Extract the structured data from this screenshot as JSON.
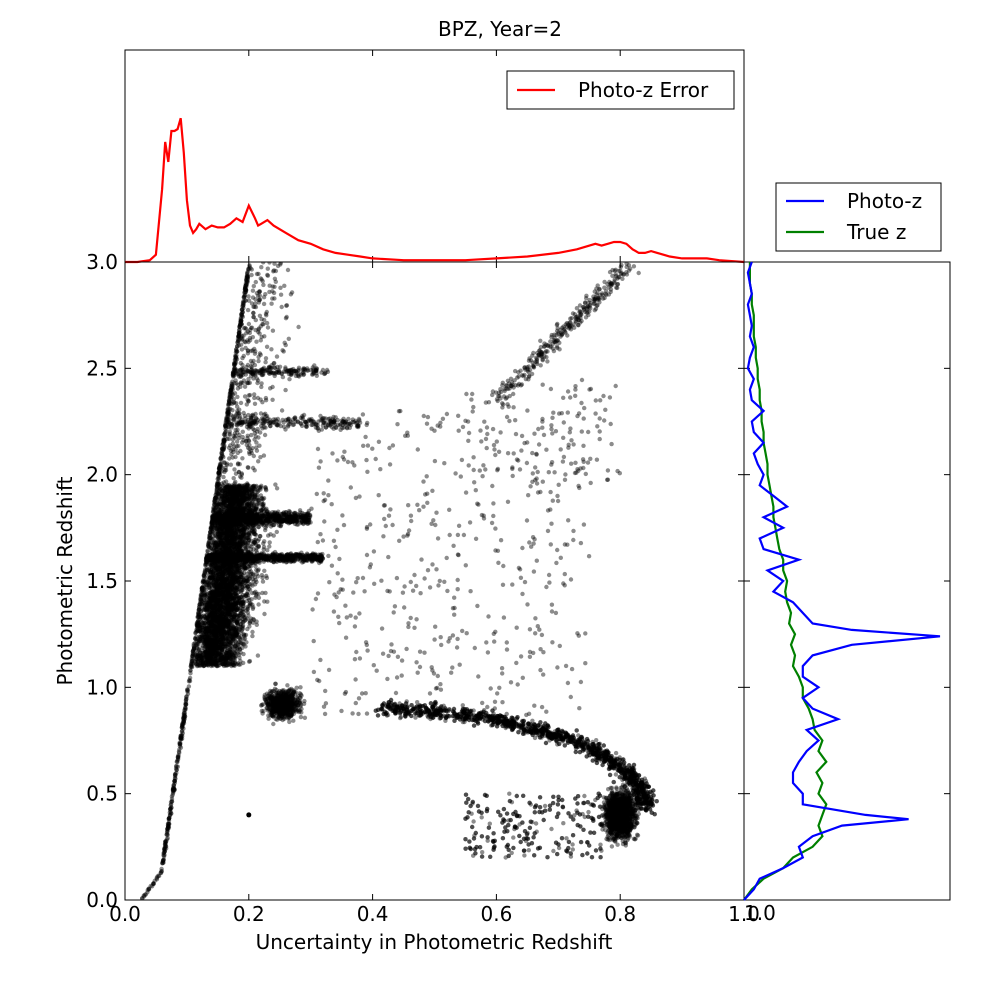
{
  "chart_data": [
    {
      "type": "scatter",
      "title": "BPZ, Year=2",
      "xlabel": "Uncertainty in Photometric Redshift",
      "ylabel": "Photometric Redshift",
      "xlim": [
        0.0,
        1.0
      ],
      "ylim": [
        0.0,
        3.0
      ],
      "xticks": [
        "0.0",
        "0.2",
        "0.4",
        "0.6",
        "0.8",
        "1.0"
      ],
      "yticks": [
        "0.0",
        "0.5",
        "1.0",
        "1.5",
        "2.0",
        "2.5",
        "3.0"
      ],
      "point_color": "#000000",
      "point_alpha": 0.45,
      "clusters": [
        {
          "name": "lower-bound-edge",
          "x_range": [
            0.025,
            0.2
          ],
          "y_range": [
            0.0,
            3.0
          ],
          "count": 700
        },
        {
          "name": "main-body",
          "x_range": [
            0.1,
            0.35
          ],
          "y_range": [
            1.1,
            1.95
          ],
          "count": 4200
        },
        {
          "name": "band-1.6",
          "x_range": [
            0.12,
            0.32
          ],
          "y_range": [
            1.58,
            1.64
          ],
          "count": 700
        },
        {
          "name": "band-1.8",
          "x_range": [
            0.13,
            0.3
          ],
          "y_range": [
            1.75,
            1.84
          ],
          "count": 700
        },
        {
          "name": "band-2.25",
          "x_range": [
            0.15,
            0.38
          ],
          "y_range": [
            2.2,
            2.29
          ],
          "count": 220
        },
        {
          "name": "band-2.5",
          "x_range": [
            0.15,
            0.33
          ],
          "y_range": [
            2.45,
            2.52
          ],
          "count": 150
        },
        {
          "name": "upper-sparse",
          "x_range": [
            0.14,
            0.42
          ],
          "y_range": [
            1.9,
            3.0
          ],
          "count": 450
        },
        {
          "name": "clump-0.9",
          "x_range": [
            0.2,
            0.32
          ],
          "y_range": [
            0.8,
            1.05
          ],
          "count": 650
        },
        {
          "name": "arc-lower",
          "x_range": [
            0.4,
            0.85
          ],
          "y_range": [
            0.15,
            0.9
          ],
          "count": 2200
        },
        {
          "name": "clump-0.4",
          "x_range": [
            0.75,
            0.85
          ],
          "y_range": [
            0.25,
            0.6
          ],
          "count": 1300
        },
        {
          "name": "diagonal-upper",
          "x_range": [
            0.58,
            0.82
          ],
          "y_range": [
            2.3,
            3.0
          ],
          "count": 420
        },
        {
          "name": "scatter-mid",
          "x_range": [
            0.3,
            0.75
          ],
          "y_range": [
            0.85,
            2.3
          ],
          "count": 450
        }
      ],
      "highlight_point": {
        "x": 0.2,
        "y": 0.4
      }
    },
    {
      "type": "line",
      "title": "",
      "xlim": [
        0.0,
        1.0
      ],
      "ylim_label": "3.0",
      "series": [
        {
          "name": "Photo-z Error",
          "color": "#ff0000",
          "x": [
            0.0,
            0.02,
            0.04,
            0.05,
            0.06,
            0.065,
            0.07,
            0.075,
            0.08,
            0.085,
            0.09,
            0.095,
            0.1,
            0.105,
            0.11,
            0.115,
            0.12,
            0.13,
            0.14,
            0.15,
            0.16,
            0.17,
            0.18,
            0.19,
            0.2,
            0.21,
            0.215,
            0.22,
            0.23,
            0.24,
            0.26,
            0.28,
            0.3,
            0.32,
            0.34,
            0.36,
            0.38,
            0.4,
            0.45,
            0.5,
            0.55,
            0.6,
            0.65,
            0.7,
            0.73,
            0.76,
            0.77,
            0.78,
            0.79,
            0.8,
            0.81,
            0.82,
            0.83,
            0.84,
            0.85,
            0.86,
            0.88,
            0.9,
            0.92,
            0.94,
            0.96,
            1.0
          ],
          "y": [
            0.0,
            0.0,
            0.01,
            0.04,
            0.4,
            0.66,
            0.55,
            0.72,
            0.72,
            0.73,
            0.79,
            0.6,
            0.34,
            0.2,
            0.16,
            0.18,
            0.21,
            0.18,
            0.2,
            0.19,
            0.19,
            0.21,
            0.24,
            0.22,
            0.31,
            0.24,
            0.2,
            0.21,
            0.23,
            0.2,
            0.16,
            0.12,
            0.1,
            0.07,
            0.05,
            0.04,
            0.03,
            0.02,
            0.01,
            0.01,
            0.01,
            0.02,
            0.03,
            0.05,
            0.07,
            0.1,
            0.09,
            0.1,
            0.11,
            0.11,
            0.1,
            0.07,
            0.05,
            0.05,
            0.06,
            0.05,
            0.03,
            0.02,
            0.02,
            0.02,
            0.01,
            0.0
          ],
          "ymax": 1.0
        }
      ],
      "legend": "upper right"
    },
    {
      "type": "line",
      "orientation": "horizontal",
      "title": "",
      "ylim": [
        0.0,
        3.0
      ],
      "xtick_label": "1.0",
      "series": [
        {
          "name": "Photo-z",
          "color": "#0000ff",
          "y": [
            0.0,
            0.05,
            0.1,
            0.15,
            0.2,
            0.25,
            0.3,
            0.35,
            0.38,
            0.4,
            0.45,
            0.5,
            0.55,
            0.6,
            0.65,
            0.7,
            0.75,
            0.8,
            0.85,
            0.9,
            0.95,
            1.0,
            1.05,
            1.1,
            1.15,
            1.2,
            1.24,
            1.27,
            1.3,
            1.35,
            1.4,
            1.45,
            1.5,
            1.55,
            1.6,
            1.65,
            1.7,
            1.75,
            1.8,
            1.85,
            1.9,
            1.95,
            2.0,
            2.05,
            2.1,
            2.15,
            2.2,
            2.25,
            2.3,
            2.35,
            2.4,
            2.45,
            2.5,
            2.55,
            2.6,
            2.65,
            2.7,
            2.75,
            2.8,
            2.85,
            2.9,
            2.95,
            3.0
          ],
          "x": [
            0.0,
            0.05,
            0.08,
            0.2,
            0.3,
            0.28,
            0.35,
            0.5,
            0.84,
            0.62,
            0.3,
            0.3,
            0.25,
            0.25,
            0.28,
            0.32,
            0.38,
            0.32,
            0.48,
            0.35,
            0.3,
            0.38,
            0.3,
            0.3,
            0.35,
            0.55,
            1.0,
            0.55,
            0.35,
            0.3,
            0.25,
            0.15,
            0.2,
            0.12,
            0.28,
            0.1,
            0.08,
            0.2,
            0.1,
            0.22,
            0.15,
            0.08,
            0.1,
            0.07,
            0.05,
            0.1,
            0.05,
            0.04,
            0.1,
            0.04,
            0.03,
            0.05,
            0.02,
            0.03,
            0.05,
            0.03,
            0.04,
            0.03,
            0.02,
            0.04,
            0.03,
            0.02,
            0.04
          ],
          "xmax": 1.0
        },
        {
          "name": "True z",
          "color": "#008000",
          "y": [
            0.0,
            0.05,
            0.1,
            0.15,
            0.2,
            0.25,
            0.3,
            0.35,
            0.4,
            0.45,
            0.5,
            0.55,
            0.6,
            0.65,
            0.7,
            0.75,
            0.8,
            0.85,
            0.9,
            0.95,
            1.0,
            1.05,
            1.1,
            1.15,
            1.2,
            1.25,
            1.3,
            1.35,
            1.4,
            1.45,
            1.5,
            1.55,
            1.6,
            1.65,
            1.7,
            1.75,
            1.8,
            1.85,
            1.9,
            1.95,
            2.0,
            2.05,
            2.1,
            2.15,
            2.2,
            2.25,
            2.3,
            2.35,
            2.4,
            2.45,
            2.5,
            2.55,
            2.6,
            2.65,
            2.7,
            2.75,
            2.8,
            2.85,
            2.9,
            2.95,
            3.0
          ],
          "x": [
            0.0,
            0.04,
            0.1,
            0.2,
            0.25,
            0.35,
            0.4,
            0.38,
            0.4,
            0.42,
            0.38,
            0.4,
            0.37,
            0.42,
            0.38,
            0.4,
            0.36,
            0.35,
            0.33,
            0.3,
            0.3,
            0.28,
            0.25,
            0.26,
            0.24,
            0.26,
            0.23,
            0.24,
            0.22,
            0.21,
            0.22,
            0.2,
            0.2,
            0.18,
            0.17,
            0.16,
            0.15,
            0.15,
            0.14,
            0.13,
            0.12,
            0.12,
            0.11,
            0.1,
            0.1,
            0.09,
            0.09,
            0.08,
            0.08,
            0.07,
            0.07,
            0.06,
            0.06,
            0.05,
            0.05,
            0.05,
            0.04,
            0.04,
            0.03,
            0.03,
            0.03
          ],
          "xmax": 1.0
        }
      ],
      "legend": "above"
    }
  ]
}
